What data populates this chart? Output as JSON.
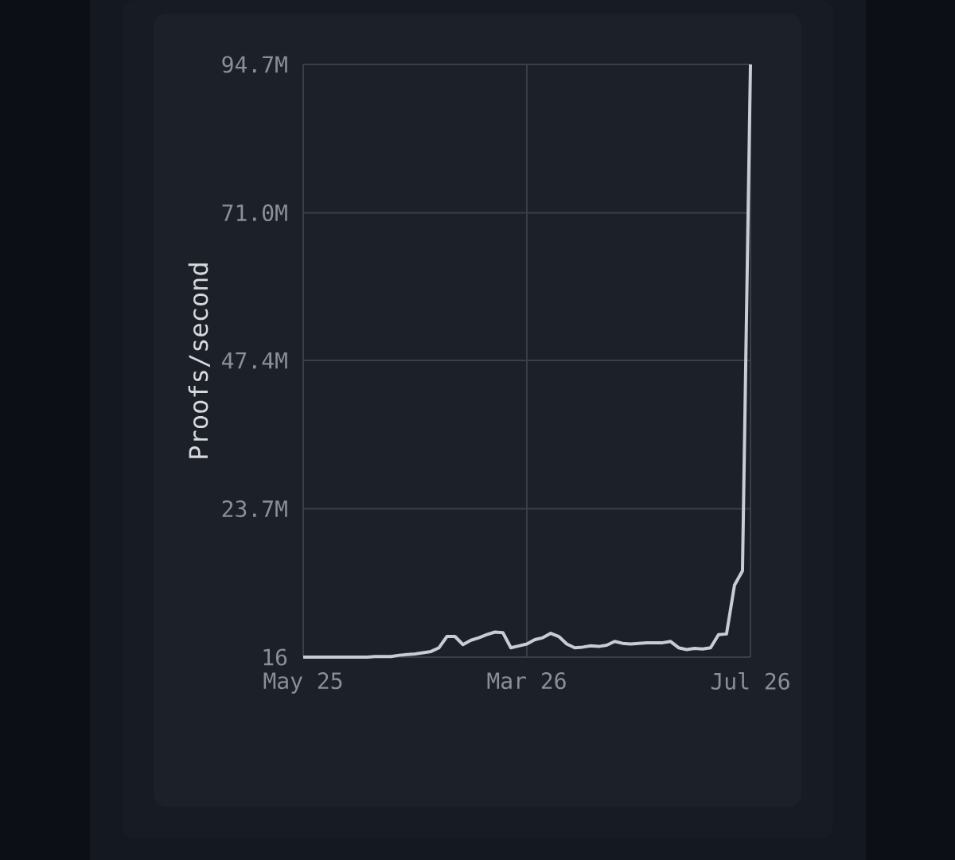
{
  "chart_data": {
    "type": "line",
    "ylabel": "Proofs/second",
    "categories": [
      "May 25",
      null,
      null,
      null,
      null,
      null,
      null,
      null,
      null,
      null,
      null,
      null,
      null,
      null,
      null,
      null,
      null,
      null,
      null,
      null,
      null,
      null,
      null,
      null,
      null,
      null,
      null,
      null,
      "Mar 26",
      null,
      null,
      null,
      null,
      null,
      null,
      null,
      null,
      null,
      null,
      null,
      null,
      null,
      null,
      null,
      null,
      null,
      null,
      null,
      null,
      null,
      null,
      null,
      null,
      null,
      null,
      null,
      "Jul 26"
    ],
    "ylim": [
      16,
      94700000
    ],
    "yticks": [
      16,
      {
        "value": 23700000,
        "label": "23.7M"
      },
      {
        "value": 47400000,
        "label": "47.4M"
      },
      {
        "value": 71000000,
        "label": "71.0M"
      },
      {
        "value": 94700000,
        "label": "94.7M"
      }
    ],
    "grid": true,
    "line_style": "solid",
    "marker": "none",
    "series": [
      {
        "color": "#c9ccd3",
        "values": [
          16,
          16,
          16,
          16,
          16,
          16,
          16,
          16,
          16,
          100000,
          100000,
          100000,
          300000,
          400000,
          500000,
          700000,
          900000,
          1500000,
          3300000,
          3300000,
          2000000,
          2700000,
          3100000,
          3600000,
          4000000,
          3900000,
          1500000,
          1800000,
          2100000,
          2800000,
          3100000,
          3800000,
          3300000,
          2100000,
          1500000,
          1600000,
          1800000,
          1700000,
          1900000,
          2500000,
          2200000,
          2100000,
          2200000,
          2300000,
          2300000,
          2300000,
          2500000,
          1500000,
          1200000,
          1400000,
          1300000,
          1500000,
          3600000,
          3700000,
          11500000,
          13800000,
          94700000
        ]
      }
    ]
  }
}
